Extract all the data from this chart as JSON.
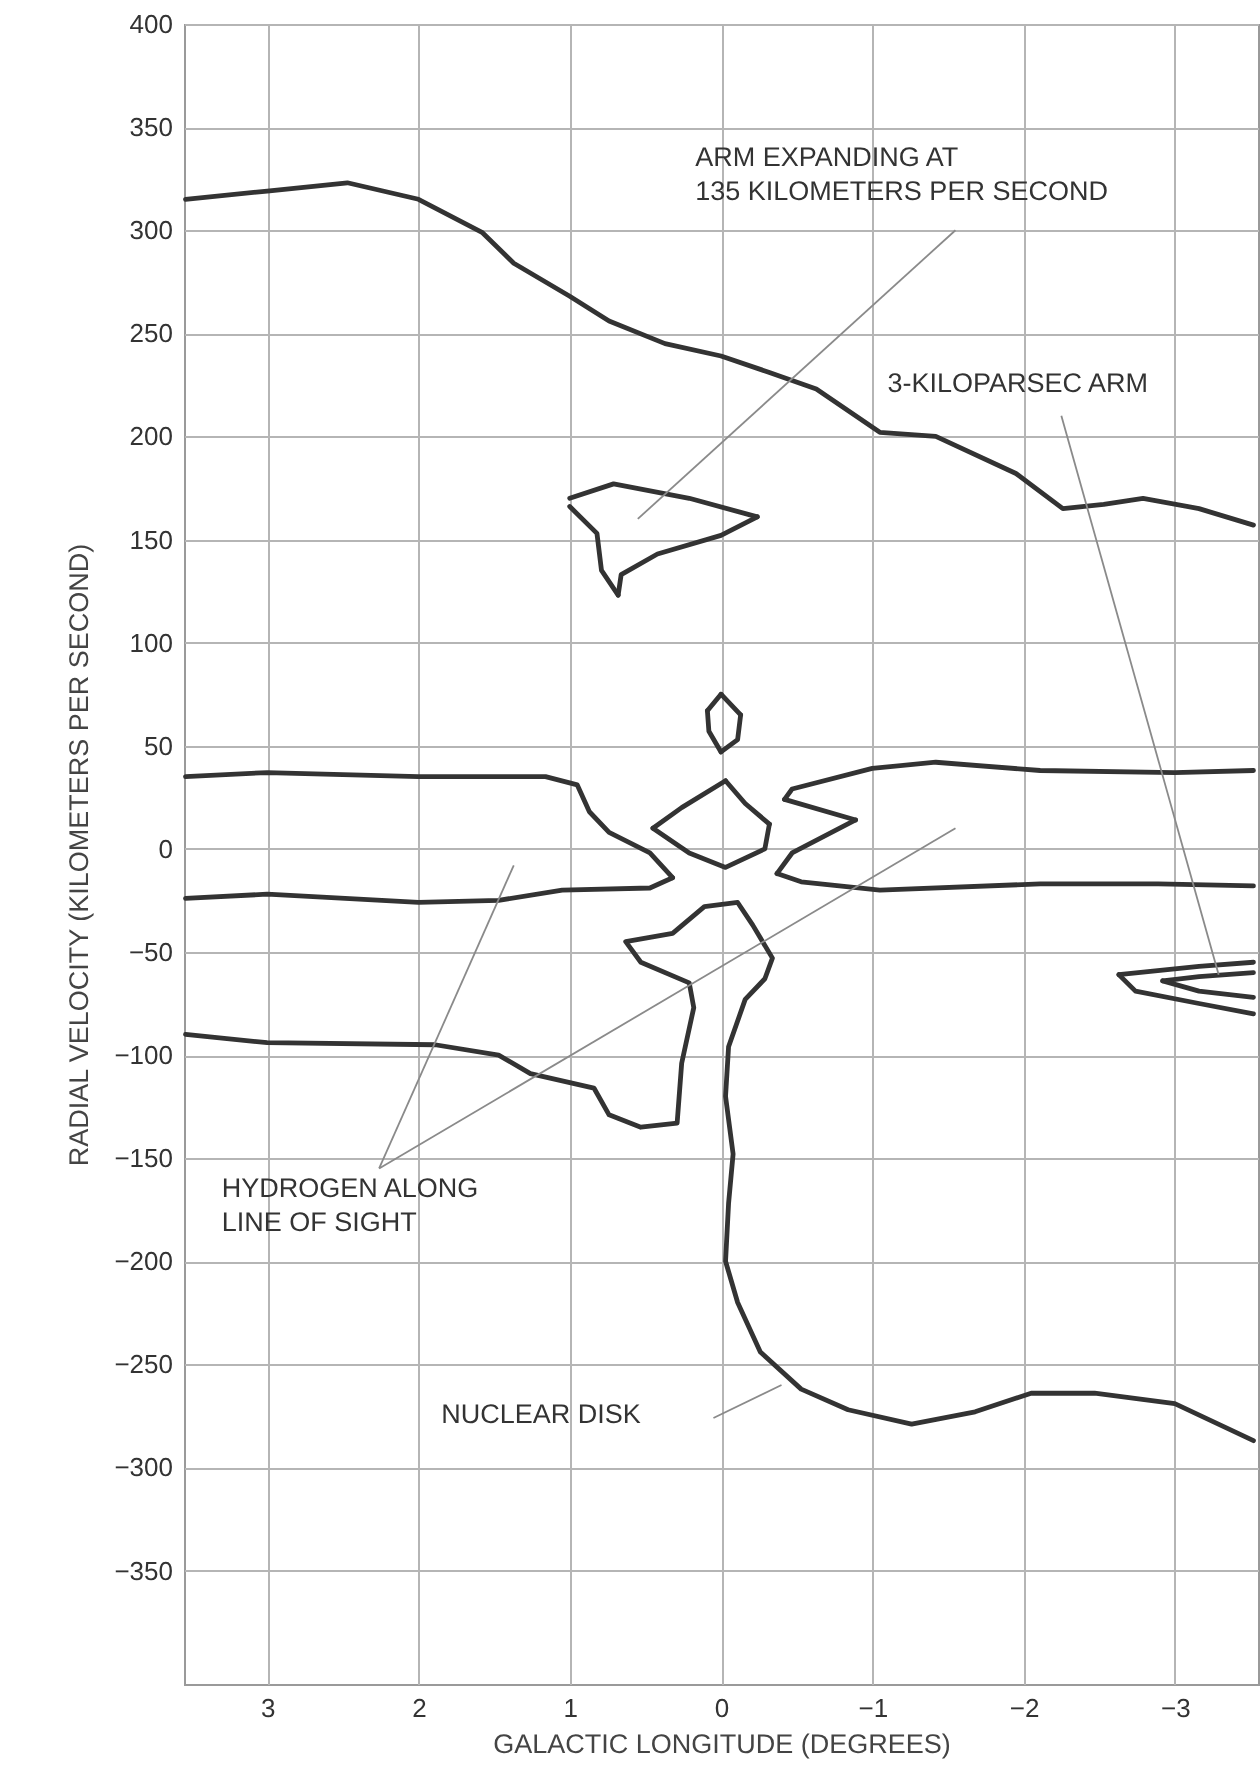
{
  "chart_data": {
    "type": "line",
    "xlabel": "GALACTIC LONGITUDE (DEGREES)",
    "ylabel": "RADIAL VELOCITY (KILOMETERS PER SECOND)",
    "xlim": [
      3.55,
      -3.55
    ],
    "ylim": [
      -405,
      400
    ],
    "xticks": [
      3,
      2,
      1,
      0,
      {
        "value": -1,
        "label": "−1"
      },
      {
        "value": -2,
        "label": "−2"
      },
      {
        "value": -3,
        "label": "−3"
      }
    ],
    "yticks": [
      {
        "value": -350,
        "label": "−350"
      },
      {
        "value": -300,
        "label": "−300"
      },
      {
        "value": -250,
        "label": "−250"
      },
      {
        "value": -200,
        "label": "−200"
      },
      {
        "value": -150,
        "label": "−150"
      },
      {
        "value": -100,
        "label": "−100"
      },
      {
        "value": -50,
        "label": "−50"
      },
      0,
      50,
      100,
      150,
      200,
      250,
      300,
      350,
      400
    ],
    "grid": true,
    "marker": "none",
    "line_style": "solid",
    "series": [
      {
        "color": "#333333",
        "x": [
          3.54,
          3.0,
          2.47,
          2.0,
          1.58,
          1.37,
          1.0,
          0.74,
          0.37,
          0,
          -0.32,
          -0.63,
          -1.05,
          -1.42,
          -1.95,
          -2.26,
          -2.53,
          -2.79,
          -3.16,
          -3.52
        ],
        "values": [
          315,
          319,
          323,
          315,
          299,
          284,
          268,
          256,
          245,
          239,
          231,
          223,
          202,
          200,
          182,
          165,
          167,
          170,
          165,
          157
        ]
      },
      {
        "color": "#333333",
        "x": [
          1.0,
          0.71,
          0.21,
          -0.24
        ],
        "values": [
          170,
          177,
          170,
          161
        ]
      },
      {
        "color": "#333333",
        "x": [
          -0.24,
          0,
          0.42,
          0.66,
          0.68
        ],
        "values": [
          161,
          152,
          143,
          133,
          123
        ]
      },
      {
        "color": "#333333",
        "x": [
          0.68,
          0.79,
          0.82,
          1.0
        ],
        "values": [
          123,
          135,
          153,
          166
        ]
      },
      {
        "color": "#333333",
        "x": [
          0,
          -0.13
        ],
        "values": [
          75,
          65
        ]
      },
      {
        "color": "#333333",
        "x": [
          -0.13,
          -0.11,
          0
        ],
        "values": [
          65,
          53,
          47
        ]
      },
      {
        "color": "#333333",
        "x": [
          0,
          0.08,
          0.09
        ],
        "values": [
          47,
          57,
          67
        ]
      },
      {
        "color": "#333333",
        "x": [
          0.09,
          0
        ],
        "values": [
          67,
          75
        ]
      },
      {
        "color": "#333333",
        "x": [
          3.54,
          3.0,
          2.0,
          1.16,
          0.95,
          0.87,
          0.74,
          0.47,
          0.32
        ],
        "values": [
          35,
          37,
          35,
          35,
          31,
          18,
          8,
          -2,
          -14
        ]
      },
      {
        "color": "#333333",
        "x": [
          0.32,
          0.47,
          1.05,
          1.47,
          2.0,
          3.0,
          3.54
        ],
        "values": [
          -14,
          -19,
          -20,
          -25,
          -26,
          -22,
          -24
        ]
      },
      {
        "color": "#333333",
        "x": [
          -0.03,
          -0.16,
          -0.32
        ],
        "values": [
          33,
          22,
          12
        ]
      },
      {
        "color": "#333333",
        "x": [
          -0.32,
          -0.29,
          -0.03,
          0.21,
          0.45
        ],
        "values": [
          12,
          0,
          -9,
          -2,
          10
        ]
      },
      {
        "color": "#333333",
        "x": [
          0.45,
          0.26,
          -0.03
        ],
        "values": [
          10,
          20,
          33
        ]
      },
      {
        "color": "#333333",
        "x": [
          -3.52,
          -3.0,
          -2.11,
          -1.42,
          -1.0,
          -0.47,
          -0.42
        ],
        "values": [
          38,
          37,
          38,
          42,
          39,
          29,
          24
        ]
      },
      {
        "color": "#333333",
        "x": [
          -0.42,
          -0.89
        ],
        "values": [
          24,
          14
        ]
      },
      {
        "color": "#333333",
        "x": [
          -0.89,
          -0.47,
          -0.37
        ],
        "values": [
          14,
          -2,
          -12
        ]
      },
      {
        "color": "#333333",
        "x": [
          -0.37,
          -0.53,
          -1.05,
          -2.11,
          -2.89,
          -3.52
        ],
        "values": [
          -12,
          -16,
          -20,
          -17,
          -17,
          -18
        ]
      },
      {
        "color": "#333333",
        "x": [
          3.54,
          3.0,
          1.89,
          1.47,
          1.26,
          0.84,
          0.74,
          0.53,
          0.29,
          0.26,
          0.18,
          0.21,
          0.53,
          0.63,
          0.32,
          0.11,
          -0.11,
          -0.21,
          -0.34,
          -0.29,
          -0.16,
          -0.05,
          -0.03,
          -0.08,
          -0.05,
          -0.03,
          -0.11,
          -0.26,
          -0.53,
          -0.84,
          -1.26,
          -1.68,
          -2.05,
          -2.47,
          -3.0,
          -3.52
        ],
        "values": [
          -90,
          -94,
          -95,
          -100,
          -109,
          -116,
          -129,
          -135,
          -133,
          -104,
          -77,
          -65,
          -55,
          -45,
          -41,
          -28,
          -26,
          -37,
          -53,
          -63,
          -73,
          -96,
          -120,
          -148,
          -172,
          -200,
          -220,
          -244,
          -262,
          -272,
          -279,
          -273,
          -264,
          -264,
          -269,
          -287
        ]
      },
      {
        "color": "#333333",
        "x": [
          -3.52,
          -3.16,
          -2.63
        ],
        "values": [
          -55,
          -57,
          -61
        ]
      },
      {
        "color": "#333333",
        "x": [
          -2.63,
          -2.74,
          -3.16,
          -3.52
        ],
        "values": [
          -61,
          -69,
          -75,
          -80
        ]
      },
      {
        "color": "#333333",
        "x": [
          -3.52,
          -3.16,
          -2.92
        ],
        "values": [
          -60,
          -62,
          -64
        ]
      },
      {
        "color": "#333333",
        "x": [
          -2.92,
          -3.16,
          -3.52
        ],
        "values": [
          -64,
          -69,
          -72
        ]
      }
    ],
    "annotations": [
      "ARM EXPANDING AT\n135 KILOMETERS PER SECOND",
      "3-KILOPARSEC ARM",
      "HYDROGEN ALONG\nLINE OF SIGHT",
      "NUCLEAR DISK"
    ]
  }
}
